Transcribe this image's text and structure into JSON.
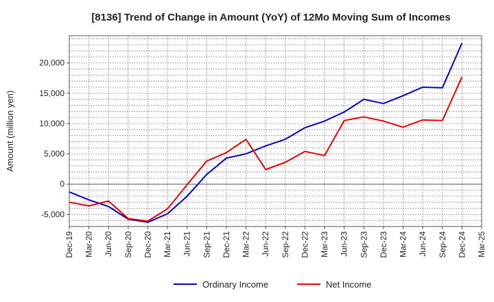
{
  "chart_data": {
    "type": "line",
    "title": "[8136]  Trend of Change in Amount (YoY) of 12Mo Moving Sum of Incomes",
    "xlabel": "",
    "ylabel": "Amount (million yen)",
    "ylim": [
      -7000,
      24500
    ],
    "yticks": [
      -5000,
      0,
      5000,
      10000,
      15000,
      20000
    ],
    "ytick_labels": [
      "-5,000",
      "0",
      "5,000",
      "10,000",
      "15,000",
      "20,000"
    ],
    "categories": [
      "Dec-19",
      "Mar-20",
      "Jun-20",
      "Sep-20",
      "Dec-20",
      "Mar-21",
      "Jun-21",
      "Sep-21",
      "Dec-21",
      "Mar-22",
      "Jun-22",
      "Sep-22",
      "Dec-22",
      "Mar-23",
      "Jun-23",
      "Sep-23",
      "Dec-23",
      "Mar-24",
      "Jun-24",
      "Sep-24",
      "Dec-24",
      "Mar-25"
    ],
    "grid": true,
    "legend_position": "bottom",
    "series": [
      {
        "name": "Ordinary Income",
        "color": "#0000cc",
        "values": [
          -1300,
          -2600,
          -3700,
          -5800,
          -6300,
          -4900,
          -2000,
          1600,
          4300,
          5000,
          6300,
          7400,
          9300,
          10400,
          11900,
          14000,
          13300,
          14600,
          16000,
          15900,
          23300,
          null
        ]
      },
      {
        "name": "Net Income",
        "color": "#ee0000",
        "values": [
          -3000,
          -3600,
          -2800,
          -5700,
          -6100,
          -4100,
          -100,
          3800,
          5200,
          7400,
          2400,
          3600,
          5400,
          4700,
          10500,
          11100,
          10400,
          9400,
          10600,
          10500,
          17700,
          null
        ]
      }
    ]
  }
}
